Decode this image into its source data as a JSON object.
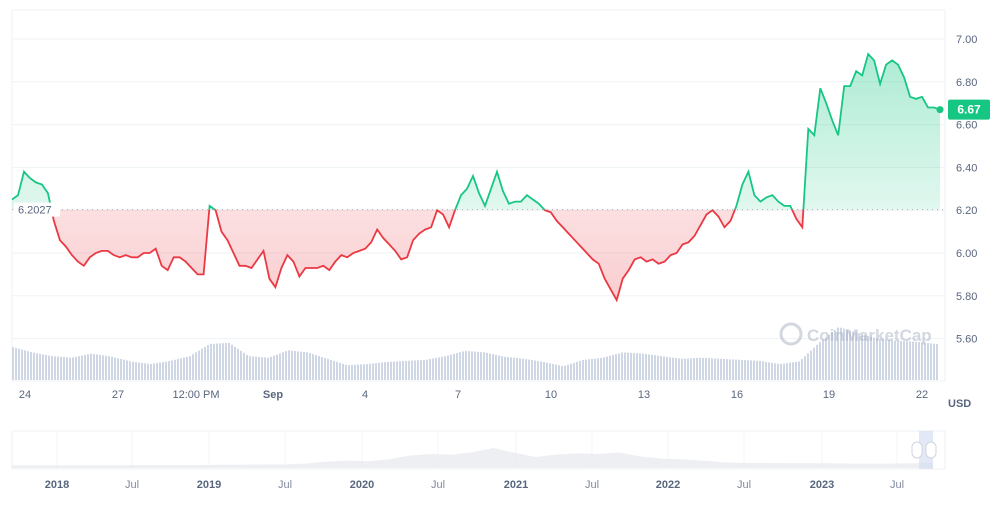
{
  "chart_data": {
    "type": "line",
    "x_range": [
      "2023-08-23T14:00",
      "2023-09-22T12:00"
    ],
    "xticks": [
      "24",
      "27",
      "12:00 PM",
      "Sep",
      "4",
      "7",
      "10",
      "13",
      "16",
      "19",
      "22"
    ],
    "xtick_bold": [
      false,
      false,
      false,
      true,
      false,
      false,
      false,
      false,
      false,
      false,
      false
    ],
    "yticks": [
      "7.00",
      "6.80",
      "6.60",
      "6.40",
      "6.20",
      "6.00",
      "5.80",
      "5.60"
    ],
    "ylim": [
      5.45,
      7.12
    ],
    "ylabel": "USD",
    "baseline": 6.2027,
    "baseline_label": "6.2027",
    "current_price": "6.67",
    "grid": true,
    "colors": {
      "up": "#16c784",
      "down": "#ea3943",
      "volume": "#cfd6e4",
      "grid": "#eff2f5",
      "navigator": "#e8ebef"
    },
    "series": [
      {
        "values": [
          6.25,
          6.27,
          6.38,
          6.35,
          6.33,
          6.32,
          6.28,
          6.15,
          6.06,
          6.03,
          5.99,
          5.96,
          5.94,
          5.98,
          6.0,
          6.01,
          6.01,
          5.99,
          5.98,
          5.99,
          5.98,
          5.98,
          6.0,
          6.0,
          6.02,
          5.94,
          5.92,
          5.98,
          5.98,
          5.96,
          5.93,
          5.9,
          5.9,
          6.22,
          6.2,
          6.1,
          6.06,
          6.0,
          5.94,
          5.94,
          5.93,
          5.97,
          6.01,
          5.88,
          5.84,
          5.93,
          5.99,
          5.96,
          5.89,
          5.93,
          5.93,
          5.93,
          5.94,
          5.92,
          5.96,
          5.99,
          5.98,
          6.0,
          6.01,
          6.02,
          6.05,
          6.11,
          6.07,
          6.04,
          6.01,
          5.97,
          5.98,
          6.06,
          6.09,
          6.11,
          6.12,
          6.2,
          6.18,
          6.12,
          6.2,
          6.27,
          6.3,
          6.36,
          6.28,
          6.22,
          6.3,
          6.38,
          6.29,
          6.23,
          6.24,
          6.24,
          6.27,
          6.25,
          6.23,
          6.2,
          6.19,
          6.15,
          6.12,
          6.09,
          6.06,
          6.03,
          6.0,
          5.97,
          5.95,
          5.88,
          5.83,
          5.78,
          5.88,
          5.92,
          5.97,
          5.98,
          5.96,
          5.97,
          5.95,
          5.96,
          5.99,
          6.0,
          6.04,
          6.05,
          6.08,
          6.13,
          6.18,
          6.2,
          6.17,
          6.12,
          6.15,
          6.22,
          6.32,
          6.38,
          6.27,
          6.24,
          6.26,
          6.27,
          6.24,
          6.22,
          6.22,
          6.16,
          6.12,
          6.58,
          6.55,
          6.77,
          6.7,
          6.62,
          6.55,
          6.78,
          6.78,
          6.85,
          6.83,
          6.93,
          6.9,
          6.79,
          6.88,
          6.9,
          6.88,
          6.82,
          6.73,
          6.72,
          6.73,
          6.68,
          6.68,
          6.67
        ]
      }
    ],
    "volume_relative": [
      62,
      52,
      45,
      42,
      50,
      44,
      35,
      30,
      36,
      45,
      68,
      70,
      45,
      42,
      56,
      52,
      40,
      28,
      30,
      34,
      36,
      38,
      45,
      55,
      52,
      44,
      40,
      34,
      26,
      38,
      42,
      52,
      50,
      45,
      40,
      42,
      40,
      38,
      36,
      30,
      35,
      70,
      100,
      88,
      78,
      74,
      72,
      68
    ],
    "navigator": {
      "xticks": [
        "2018",
        "Jul",
        "2019",
        "Jul",
        "2020",
        "Jul",
        "2021",
        "Jul",
        "2022",
        "Jul",
        "2023",
        "Jul"
      ],
      "xtick_bold": [
        true,
        false,
        true,
        false,
        true,
        false,
        true,
        false,
        true,
        false,
        true,
        false
      ],
      "values_relative": [
        2,
        2,
        2,
        2,
        2,
        2,
        3,
        3,
        3,
        3,
        4,
        4,
        5,
        5,
        8,
        14,
        18,
        16,
        22,
        35,
        40,
        38,
        46,
        60,
        44,
        30,
        38,
        42,
        40,
        45,
        32,
        25,
        22,
        18,
        12,
        10,
        10,
        9,
        9,
        9,
        8,
        8,
        8,
        9,
        10
      ]
    },
    "watermark": "CoinMarketCap"
  }
}
